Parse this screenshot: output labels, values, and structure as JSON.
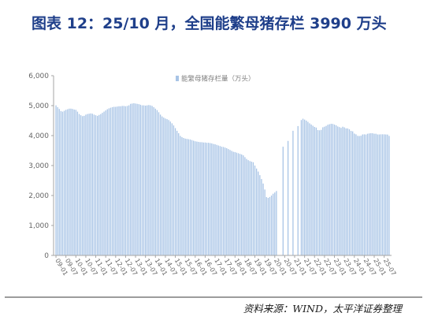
{
  "chart_data": {
    "type": "bar",
    "title": "图表 12：25/10 月，全国能繁母猪存栏 3990 万头",
    "xtick_labels": [
      "09-01",
      "09-07",
      "10-01",
      "10-07",
      "11-01",
      "11-07",
      "12-01",
      "12-07",
      "13-01",
      "13-07",
      "14-01",
      "14-07",
      "15-01",
      "15-07",
      "16-01",
      "16-07",
      "17-01",
      "17-07",
      "18-01",
      "18-07",
      "19-01",
      "19-07",
      "20-01",
      "20-07",
      "21-01",
      "21-07",
      "22-01",
      "22-07",
      "23-01",
      "23-07",
      "24-01",
      "24-07",
      "25-01",
      "25-07"
    ],
    "series": [
      {
        "name": "能繁母猪存栏量（万头）",
        "color": "#a8c4e6",
        "values_by_tick": [
          [
            5010,
            4950,
            4890,
            4820,
            4800,
            4830
          ],
          [
            4860,
            4880,
            4900,
            4900,
            4890,
            4870
          ],
          [
            4860,
            4800,
            4720,
            4680,
            4650,
            4660
          ],
          [
            4700,
            4720,
            4730,
            4740,
            4730,
            4700
          ],
          [
            4680,
            4660,
            4690,
            4720,
            4760,
            4800
          ],
          [
            4840,
            4880,
            4910,
            4930,
            4950,
            4960
          ],
          [
            4960,
            4970,
            4980,
            4980,
            4990,
            4990
          ],
          [
            4980,
            4990,
            5010,
            5060,
            5070,
            5080
          ],
          [
            5070,
            5060,
            5050,
            5030,
            5010,
            5010
          ],
          [
            5000,
            5010,
            5020,
            5010,
            4990,
            4950
          ],
          [
            4900,
            4850,
            4780,
            4700,
            4640,
            4600
          ],
          [
            4570,
            4550,
            4520,
            4470,
            4410,
            4340
          ],
          [
            4250,
            4160,
            4080,
            3990,
            3950,
            3920
          ],
          [
            3900,
            3890,
            3880,
            3870,
            3850,
            3830
          ],
          [
            3810,
            3800,
            3790,
            3780,
            3780,
            3770
          ],
          [
            3770,
            3760,
            3760,
            3750,
            3740,
            3720
          ],
          [
            3710,
            3690,
            3670,
            3650,
            3630,
            3620
          ],
          [
            3600,
            3580,
            3550,
            3520,
            3490,
            3460
          ],
          [
            3450,
            3430,
            3410,
            3390,
            3370,
            3340
          ],
          [
            3280,
            3220,
            3180,
            3150,
            3130,
            3110
          ],
          [
            3000,
            2900,
            2800,
            2680,
            2550,
            2400
          ],
          [
            2200,
            1950,
            1920,
            1950,
            2000,
            2060
          ],
          [
            2100,
            2150,
            null,
            null,
            null,
            3629
          ],
          [
            null,
            null,
            3822,
            null,
            null,
            4161
          ],
          [
            null,
            null,
            4318,
            null,
            4520,
            4564
          ],
          [
            4534,
            4500,
            4459,
            4410,
            4370,
            4329
          ],
          [
            4290,
            4268,
            4185,
            4177,
            4192,
            4277
          ],
          [
            4298,
            4324,
            4362,
            4379,
            4394,
            4390
          ],
          [
            4367,
            4343,
            4305,
            4284,
            4258,
            4296
          ],
          [
            4275,
            4241,
            4240,
            4210,
            4158,
            4142
          ],
          [
            4067,
            4042,
            3992,
            3986,
            3996,
            4038
          ],
          [
            4042,
            4036,
            4062,
            4073,
            4080,
            4078
          ],
          [
            4062,
            4062,
            4039,
            4038,
            4042,
            4043
          ],
          [
            4042,
            4038,
            4035,
            3990
          ]
        ]
      }
    ],
    "ylim": [
      0,
      6000
    ],
    "ytick_labels": [
      "0",
      "1,000",
      "2,000",
      "3,000",
      "4,000",
      "5,000",
      "6,000"
    ],
    "legend": "top-center",
    "grid": false
  },
  "colors": {
    "title": "#1f3f8a",
    "axis": "#a6a6a6",
    "divider": "#3a3a3a"
  },
  "source": "资料来源：WIND，太平洋证券整理"
}
